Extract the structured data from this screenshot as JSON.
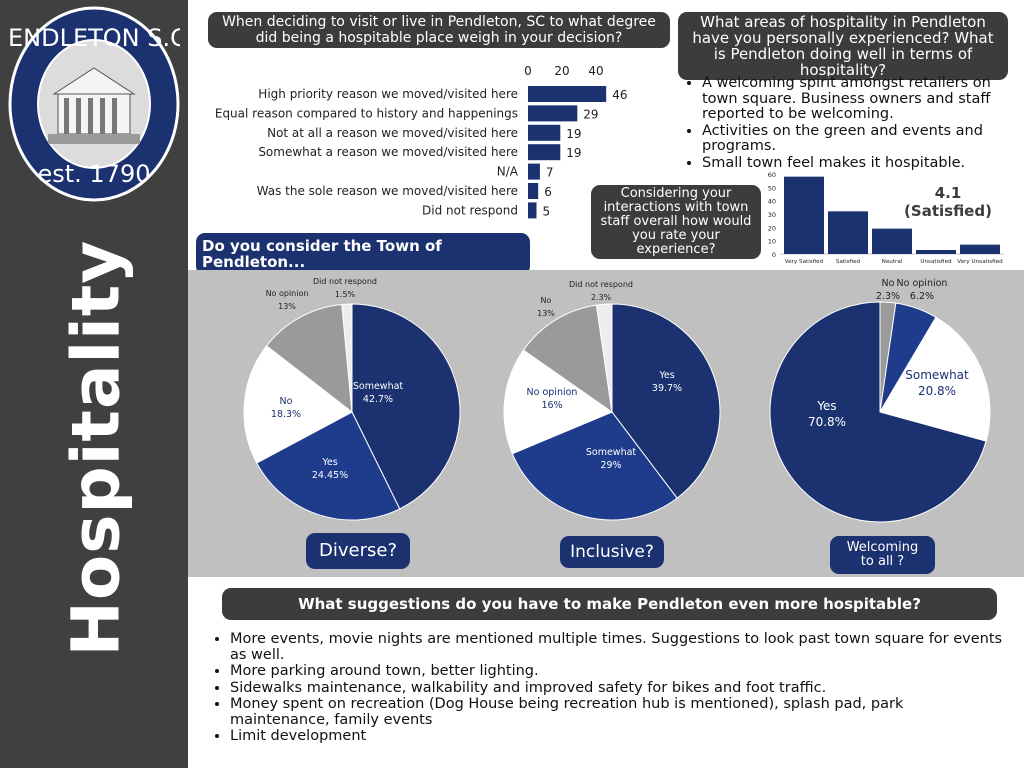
{
  "sidebar": {
    "title": "Hospitality",
    "logo_text_top": "PENDLETON S.C.",
    "logo_text_bottom": "est. 1790"
  },
  "q1": {
    "title": "When deciding to visit or live in Pendleton, SC to what degree did being a hospitable place weigh in your decision?"
  },
  "q2": {
    "title": "What areas of hospitality in Pendleton have you personally experienced? What is Pendleton doing well in terms of hospitality?",
    "bullets": [
      "A welcoming spirit amongst retailers on town square.  Business owners and staff reported to be welcoming.",
      "Activities on the green and events and programs.",
      "Small town feel makes it hospitable."
    ]
  },
  "q3": {
    "title": "Considering your interactions with town staff overall how would you rate your experience?",
    "score": "4.1",
    "score_label": "(Satisfied)"
  },
  "consider": {
    "title": "Do you consider the Town of Pendleton..."
  },
  "pie_labels": [
    "Diverse?",
    "Inclusive?",
    "Welcoming to all ?"
  ],
  "q4": {
    "title": "What suggestions do you have to make Pendleton even more hospitable?",
    "bullets": [
      "More events, movie nights are mentioned multiple times.  Suggestions to look past town square for events as well.",
      "More parking around town, better lighting.",
      "Sidewalks maintenance, walkability and improved safety for bikes and foot traffic.",
      "Money spent on recreation (Dog House being recreation hub is mentioned), splash pad, park maintenance, family events",
      "Limit development"
    ]
  },
  "colors": {
    "navy": "#1b3170",
    "blue": "#1e3b8c",
    "gray": "#9a9a9a",
    "white": "#ffffff"
  },
  "chart_data": [
    {
      "type": "bar",
      "orientation": "horizontal",
      "categories": [
        "High priority reason we moved/visited here",
        "Equal reason compared to history and happenings",
        "Not at all a reason we moved/visited here",
        "Somewhat a reason we moved/visited here",
        "N/A",
        "Was the sole reason we moved/visited here",
        "Did not respond"
      ],
      "values": [
        46,
        29,
        19,
        19,
        7,
        6,
        5
      ],
      "xticks": [
        0,
        20,
        40
      ],
      "xlim": [
        0,
        48
      ]
    },
    {
      "type": "bar",
      "categories": [
        "Very Satisfied",
        "Satisfied",
        "Neutral",
        "Unsatisfied",
        "Very Unsatisfied"
      ],
      "values": [
        58,
        32,
        19,
        3,
        7
      ],
      "yticks": [
        0,
        10,
        20,
        30,
        40,
        50,
        60
      ],
      "ylim": [
        0,
        60
      ]
    },
    {
      "type": "pie",
      "slices": [
        {
          "label": "Somewhat",
          "pct_label": "42.7%",
          "value": 42.7,
          "color": "#1b3170"
        },
        {
          "label": "Yes",
          "pct_label": "24.45%",
          "value": 24.45,
          "color": "#1e3b8c"
        },
        {
          "label": "No",
          "pct_label": "18.3%",
          "value": 18.3,
          "color": "#ffffff"
        },
        {
          "label": "No opinion",
          "pct_label": "13%",
          "value": 13,
          "color": "#9a9a9a"
        },
        {
          "label": "Did not respond",
          "pct_label": "1.5%",
          "value": 1.5,
          "color": "#ededed"
        }
      ]
    },
    {
      "type": "pie",
      "slices": [
        {
          "label": "Yes",
          "pct_label": "39.7%",
          "value": 39.7,
          "color": "#1b3170"
        },
        {
          "label": "Somewhat",
          "pct_label": "29%",
          "value": 29,
          "color": "#1e3b8c"
        },
        {
          "label": "No opinion",
          "pct_label": "16%",
          "value": 16,
          "color": "#ffffff"
        },
        {
          "label": "No",
          "pct_label": "13%",
          "value": 13,
          "color": "#9a9a9a"
        },
        {
          "label": "Did not respond",
          "pct_label": "2.3%",
          "value": 2.3,
          "color": "#ededed"
        }
      ]
    },
    {
      "type": "pie",
      "slices": [
        {
          "label": "No",
          "pct_label": "2.3%",
          "value": 2.3,
          "color": "#9a9a9a"
        },
        {
          "label": "No opinion",
          "pct_label": "6.2%",
          "value": 6.2,
          "color": "#1e3b8c"
        },
        {
          "label": "Somewhat",
          "pct_label": "20.8%",
          "value": 20.8,
          "color": "#ffffff"
        },
        {
          "label": "Yes",
          "pct_label": "70.8%",
          "value": 70.8,
          "color": "#1b3170"
        }
      ]
    }
  ]
}
